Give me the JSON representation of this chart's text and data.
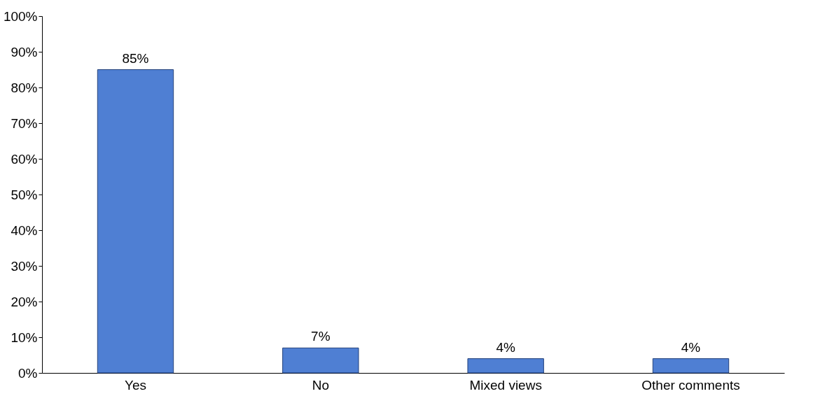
{
  "chart_data": {
    "type": "bar",
    "categories": [
      "Yes",
      "No",
      "Mixed views",
      "Other comments"
    ],
    "values": [
      85,
      7,
      4,
      4
    ],
    "value_labels": [
      "85%",
      "7%",
      "4%",
      "4%"
    ],
    "color": "#4f7fd3",
    "ylim": [
      0,
      100
    ],
    "yticks": [
      {
        "value": 0,
        "label": "0%"
      },
      {
        "value": 10,
        "label": "10%"
      },
      {
        "value": 20,
        "label": "20%"
      },
      {
        "value": 30,
        "label": "30%"
      },
      {
        "value": 40,
        "label": "40%"
      },
      {
        "value": 50,
        "label": "50%"
      },
      {
        "value": 60,
        "label": "60%"
      },
      {
        "value": 70,
        "label": "70%"
      },
      {
        "value": 80,
        "label": "80%"
      },
      {
        "value": 90,
        "label": "90%"
      },
      {
        "value": 100,
        "label": "100%"
      }
    ],
    "grid": false
  }
}
